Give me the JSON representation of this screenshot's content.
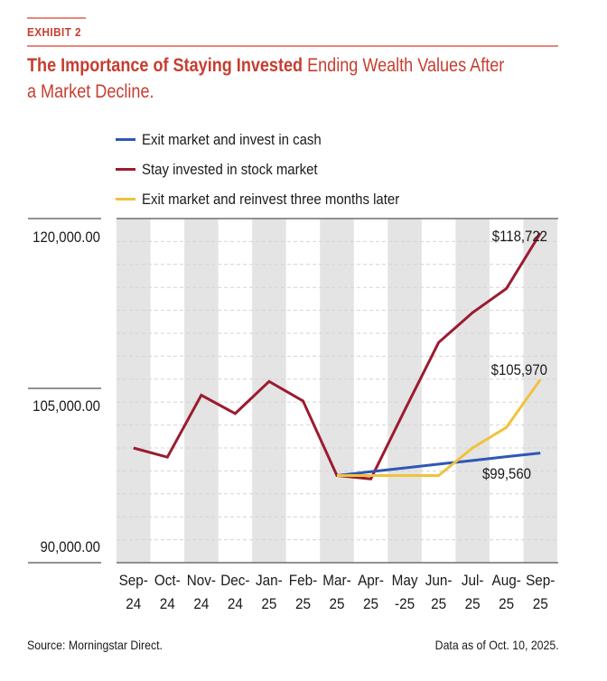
{
  "header": {
    "exhibit_label": "EXHIBIT 2",
    "title_bold": "The Importance of Staying Invested",
    "title_rest_line1": "Ending Wealth Values After",
    "title_rest_line2": "a Market Decline."
  },
  "footer": {
    "source": "Source: Morningstar Direct.",
    "as_of": "Data as of Oct. 10, 2025."
  },
  "colors": {
    "accent": "#c63d2f",
    "rule": "#e8867a",
    "band": "#e4e4e4",
    "blue": "#2f57b5",
    "red": "#9b1b30",
    "yellow": "#f0c23c"
  },
  "chart_data": {
    "type": "line",
    "title": "The Importance of Staying Invested Ending Wealth Values After a Market Decline.",
    "xlabel": "",
    "ylabel": "",
    "categories": [
      [
        "Sep-",
        "24"
      ],
      [
        "Oct-",
        "24"
      ],
      [
        "Nov-",
        "24"
      ],
      [
        "Dec-",
        "24"
      ],
      [
        "Jan-",
        "25"
      ],
      [
        "Feb-",
        "25"
      ],
      [
        "Mar-",
        "25"
      ],
      [
        "Apr-",
        "25"
      ],
      [
        "May",
        "-25"
      ],
      [
        "Jun-",
        "25"
      ],
      [
        "Jul-",
        "25"
      ],
      [
        "Aug-",
        "25"
      ],
      [
        "Sep-",
        "25"
      ]
    ],
    "ylim": [
      90000,
      120000
    ],
    "yticks": [
      {
        "value": 120000,
        "label": "120,000.00"
      },
      {
        "value": 105000,
        "label": "105,000.00"
      },
      {
        "value": 90000,
        "label": "90,000.00"
      }
    ],
    "grid_step": 2000,
    "grid": true,
    "alternating_column_bands": true,
    "legend_position": "top-left",
    "series": [
      {
        "name": "Exit market and invest in cash",
        "color_key": "blue",
        "values": [
          null,
          null,
          null,
          null,
          null,
          null,
          97600,
          97930,
          98260,
          98590,
          98910,
          99240,
          99560
        ],
        "end_label": "$99,560"
      },
      {
        "name": "Stay invested in stock market",
        "color_key": "red",
        "values": [
          100000,
          99200,
          104600,
          103000,
          105800,
          104100,
          97600,
          97300,
          103300,
          109200,
          111800,
          113900,
          118722
        ],
        "end_label": "$118,722"
      },
      {
        "name": "Exit market and reinvest three months later",
        "color_key": "yellow",
        "values": [
          null,
          null,
          null,
          null,
          null,
          null,
          97600,
          97600,
          97600,
          97600,
          100000,
          101800,
          105970
        ],
        "end_label": "$105,970"
      }
    ]
  }
}
